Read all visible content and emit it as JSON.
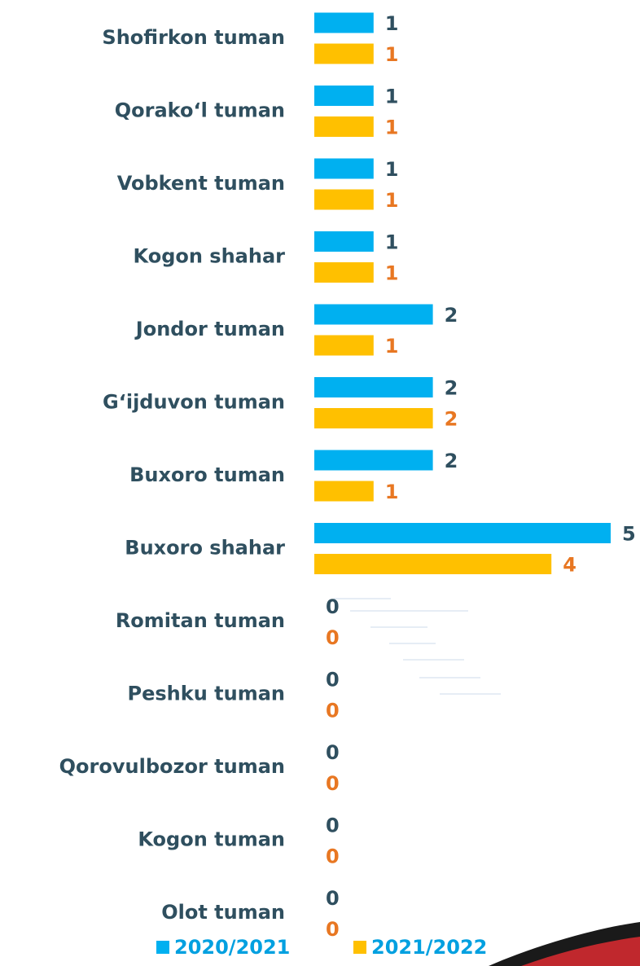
{
  "chart_data": {
    "type": "bar",
    "orientation": "horizontal",
    "categories": [
      "Shofirkon tuman",
      "Qorako‘l tuman",
      "Vobkent tuman",
      "Kogon shahar",
      "Jondor tuman",
      "G‘ijduvon tuman",
      "Buxoro tuman",
      "Buxoro shahar",
      "Romitan tuman",
      "Peshku tuman",
      "Qorovulbozor tuman",
      "Kogon tuman",
      "Olot tuman"
    ],
    "series": [
      {
        "name": "2020/2021",
        "color": "#00b0f0",
        "values": [
          1,
          1,
          1,
          1,
          2,
          2,
          2,
          5,
          0,
          0,
          0,
          0,
          0
        ]
      },
      {
        "name": "2021/2022",
        "color": "#ffc000",
        "values": [
          1,
          1,
          1,
          1,
          1,
          2,
          1,
          4,
          0,
          0,
          0,
          0,
          0
        ]
      }
    ]
  }
}
